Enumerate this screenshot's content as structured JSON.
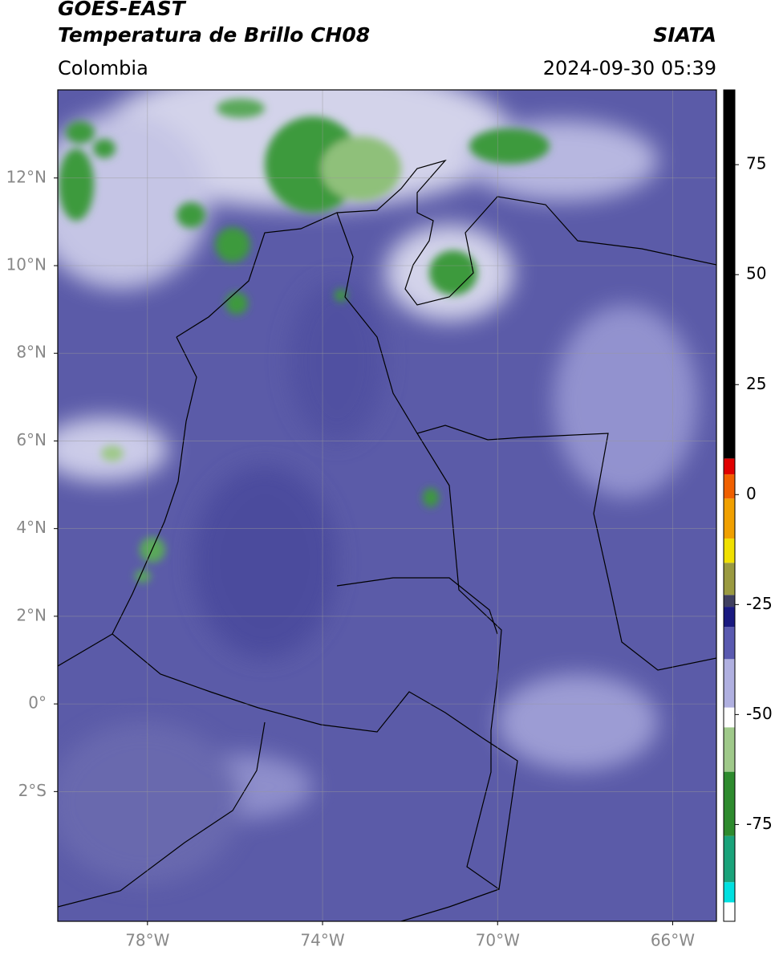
{
  "header": {
    "satellite": "GOES-EAST",
    "product": "Temperatura de Brillo CH08",
    "source": "SIATA",
    "region": "Colombia",
    "datetime": "2024-09-30 05:39"
  },
  "map": {
    "lonlim": [
      -80.05,
      -65
    ],
    "latlim": [
      -4.96,
      14.01
    ],
    "grid": true,
    "xticks": [
      {
        "value": -78,
        "label": "78°W"
      },
      {
        "value": -74,
        "label": "74°W"
      },
      {
        "value": -70,
        "label": "70°W"
      },
      {
        "value": -66,
        "label": "66°W"
      }
    ],
    "yticks": [
      {
        "value": 12,
        "label": "12°N"
      },
      {
        "value": 10,
        "label": "10°N"
      },
      {
        "value": 8,
        "label": "8°N"
      },
      {
        "value": 6,
        "label": "6°N"
      },
      {
        "value": 4,
        "label": "4°N"
      },
      {
        "value": 2,
        "label": "2°N"
      },
      {
        "value": 0,
        "label": "0°"
      },
      {
        "value": -2,
        "label": "2°S"
      }
    ]
  },
  "colorbar": {
    "lim": [
      -97,
      92
    ],
    "ticks": [
      75,
      50,
      25,
      0,
      -25,
      -50,
      -75
    ],
    "segments": [
      {
        "from": -97,
        "to": -92.7,
        "color": "#ffffff"
      },
      {
        "from": -92.7,
        "to": -88.1,
        "color": "#00e0e0"
      },
      {
        "from": -88.1,
        "to": -77.6,
        "color": "#1aa37a"
      },
      {
        "from": -77.6,
        "to": -63,
        "color": "#2e8b2e"
      },
      {
        "from": -63,
        "to": -52.9,
        "color": "#9fc98a"
      },
      {
        "from": -52.9,
        "to": -48.4,
        "color": "#ffffff"
      },
      {
        "from": -48.4,
        "to": -37.4,
        "color": "#b0b0e0"
      },
      {
        "from": -37.4,
        "to": -30.1,
        "color": "#5a5ab0"
      },
      {
        "from": -30.1,
        "to": -25.5,
        "color": "#1a1a80"
      },
      {
        "from": -25.5,
        "to": -22.8,
        "color": "#404060"
      },
      {
        "from": -22.8,
        "to": -15.5,
        "color": "#9a9a40"
      },
      {
        "from": -15.5,
        "to": -10,
        "color": "#f0e000"
      },
      {
        "from": -10,
        "to": -0.9,
        "color": "#f0a000"
      },
      {
        "from": -0.9,
        "to": 4.6,
        "color": "#f06000"
      },
      {
        "from": 4.6,
        "to": 8.2,
        "color": "#e00000"
      },
      {
        "from": 8.2,
        "to": 92,
        "color": "#000000"
      }
    ]
  }
}
